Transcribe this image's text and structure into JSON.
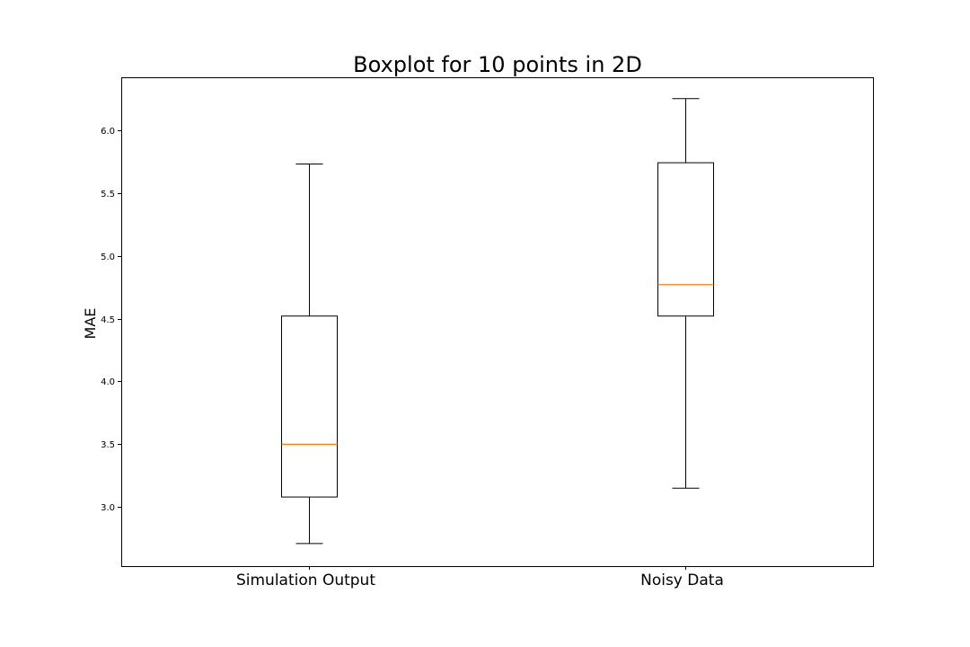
{
  "chart_data": {
    "type": "boxplot",
    "title": "Boxplot for 10 points in 2D",
    "xlabel": "",
    "ylabel": "MAE",
    "categories": [
      "Simulation Output",
      "Noisy Data"
    ],
    "boxes": [
      {
        "whisker_low": 2.71,
        "q1": 3.08,
        "median": 3.5,
        "q3": 4.52,
        "whisker_high": 5.73
      },
      {
        "whisker_low": 3.15,
        "q1": 4.52,
        "median": 4.77,
        "q3": 5.74,
        "whisker_high": 6.25
      }
    ],
    "ylim": [
      2.53,
      6.42
    ],
    "yticks": [
      3.0,
      3.5,
      4.0,
      4.5,
      5.0,
      5.5,
      6.0
    ],
    "ytick_labels": [
      "3.0",
      "3.5",
      "4.0",
      "4.5",
      "5.0",
      "5.5",
      "6.0"
    ],
    "grid": false,
    "colors": {
      "box": "#000000",
      "median": "#ff7f0e",
      "frame": "#000000"
    }
  }
}
